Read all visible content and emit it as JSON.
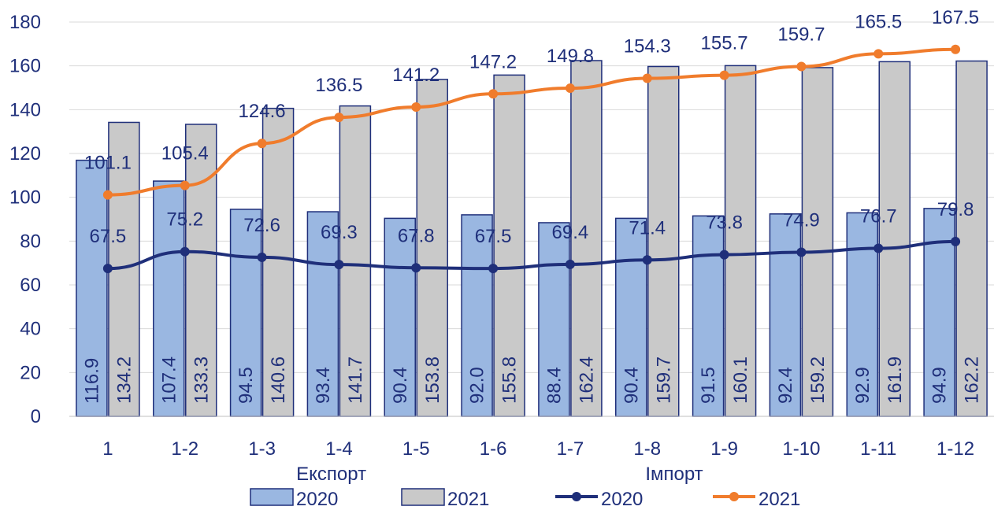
{
  "chart_data": {
    "type": "bar",
    "categories": [
      "1",
      "1-2",
      "1-3",
      "1-4",
      "1-5",
      "1-6",
      "1-7",
      "1-8",
      "1-9",
      "1-10",
      "1-11",
      "1-12"
    ],
    "ylim": [
      0,
      180
    ],
    "yticks": [
      0,
      20,
      40,
      60,
      80,
      100,
      120,
      140,
      160,
      180
    ],
    "grid": true,
    "legend_position": "bottom",
    "axis_titles": [
      "Експорт",
      "Імпорт"
    ],
    "bar_series": [
      {
        "name": "2020",
        "color": "#9ab7e1",
        "stroke": "#1f2f7a",
        "values": [
          116.9,
          107.4,
          94.5,
          93.4,
          90.4,
          92.0,
          88.4,
          90.4,
          91.5,
          92.4,
          92.9,
          94.9
        ],
        "labels": [
          "116.9",
          "107.4",
          "94.5",
          "93.4",
          "90.4",
          "92.0",
          "88.4",
          "90.4",
          "91.5",
          "92.4",
          "92.9",
          "94.9"
        ]
      },
      {
        "name": "2021",
        "color": "#c9c9c9",
        "stroke": "#1f2f7a",
        "values": [
          134.2,
          133.3,
          140.6,
          141.7,
          153.8,
          155.8,
          162.4,
          159.7,
          160.1,
          159.2,
          161.9,
          162.2
        ],
        "labels": [
          "134.2",
          "133.3",
          "140.6",
          "141.7",
          "153.8",
          "155.8",
          "162.4",
          "159.7",
          "160.1",
          "159.2",
          "161.9",
          "162.2"
        ]
      }
    ],
    "line_series": [
      {
        "name": "2020",
        "color": "#1f2f7a",
        "values": [
          67.5,
          75.2,
          72.6,
          69.3,
          67.8,
          67.5,
          69.4,
          71.4,
          73.8,
          74.9,
          76.7,
          79.8
        ],
        "labels": [
          "67.5",
          "75.2",
          "72.6",
          "69.3",
          "67.8",
          "67.5",
          "69.4",
          "71.4",
          "73.8",
          "74.9",
          "76.7",
          "79.8"
        ]
      },
      {
        "name": "2021",
        "color": "#f07c2c",
        "values": [
          101.1,
          105.4,
          124.6,
          136.5,
          141.2,
          147.2,
          149.8,
          154.3,
          155.7,
          159.7,
          165.5,
          167.5
        ],
        "labels": [
          "101.1",
          "105.4",
          "124.6",
          "136.5",
          "141.2",
          "147.2",
          "149.8",
          "154.3",
          "155.7",
          "159.7",
          "165.5",
          "167.5"
        ]
      }
    ]
  }
}
